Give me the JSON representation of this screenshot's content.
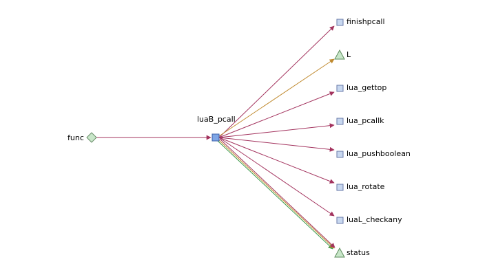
{
  "colors": {
    "call_edge": "#a3335e",
    "param_edge": "#c08a2f",
    "return_edge": "#3a9a4a",
    "func_node_fill": "#c8e6c9",
    "func_node_stroke": "#6b8e6b",
    "callee_fill": "#c8d8f0",
    "callee_stroke": "#6a7aa8",
    "center_fill": "#7fa6e6",
    "center_stroke": "#3a5fa8",
    "param_fill": "#c8e6c9",
    "param_stroke": "#5a8a5a"
  },
  "nodes": {
    "source": {
      "label": "func",
      "shape": "diamond-icon"
    },
    "center": {
      "label": "luaB_pcall",
      "shape": "square-icon"
    },
    "targets": [
      {
        "label": "finishpcall",
        "shape": "square-icon",
        "edge": "call"
      },
      {
        "label": "L",
        "shape": "triangle-icon",
        "edge": "param"
      },
      {
        "label": "lua_gettop",
        "shape": "square-icon",
        "edge": "call"
      },
      {
        "label": "lua_pcallk",
        "shape": "square-icon",
        "edge": "call"
      },
      {
        "label": "lua_pushboolean",
        "shape": "square-icon",
        "edge": "call"
      },
      {
        "label": "lua_rotate",
        "shape": "square-icon",
        "edge": "call"
      },
      {
        "label": "luaL_checkany",
        "shape": "square-icon",
        "edge": "call"
      },
      {
        "label": "status",
        "shape": "triangle-icon",
        "edge": "multi"
      }
    ]
  }
}
